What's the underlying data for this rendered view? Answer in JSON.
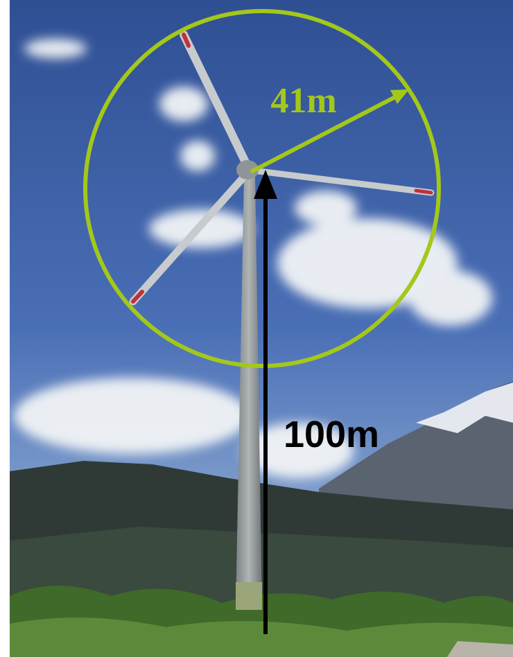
{
  "annotations": {
    "radius_label": "41m",
    "height_label": "100m"
  }
}
